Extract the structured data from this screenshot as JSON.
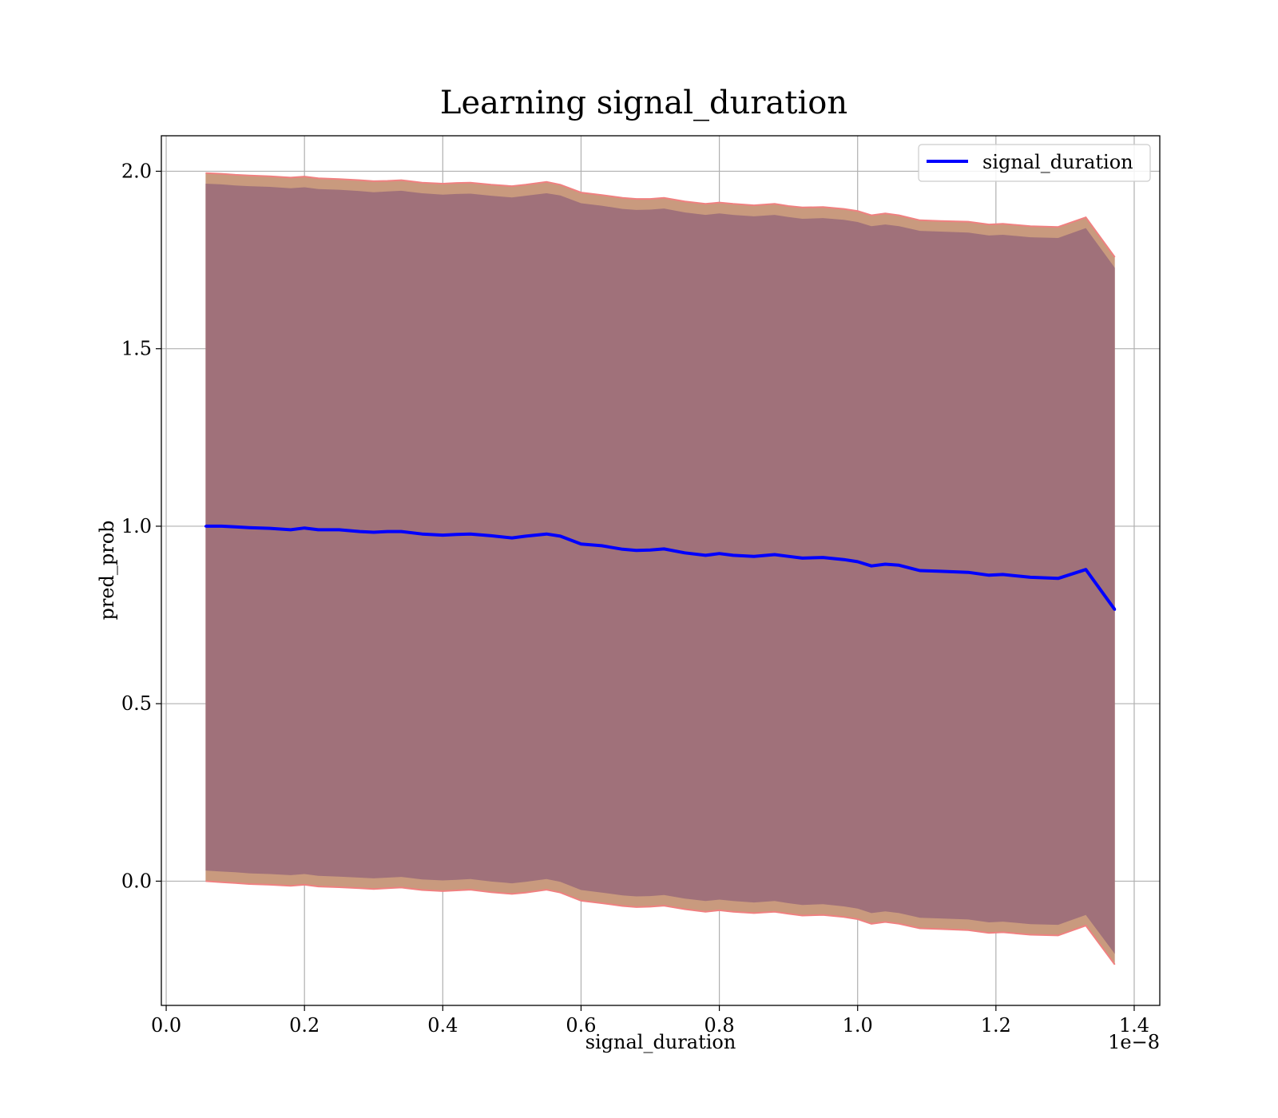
{
  "chart_data": {
    "type": "line",
    "title": "Learning signal_duration",
    "xlabel": "signal_duration",
    "ylabel": "pred_prob",
    "x_scale_label": "1e−8",
    "xlim": [
      -0.007,
      1.437
    ],
    "ylim": [
      -0.35,
      2.1
    ],
    "xticks": [
      0.0,
      0.2,
      0.4,
      0.6,
      0.8,
      1.0,
      1.2,
      1.4
    ],
    "xtick_labels": [
      "0.0",
      "0.2",
      "0.4",
      "0.6",
      "0.8",
      "1.0",
      "1.2",
      "1.4"
    ],
    "yticks": [
      0.0,
      0.5,
      1.0,
      1.5,
      2.0
    ],
    "ytick_labels": [
      "0.0",
      "0.5",
      "1.0",
      "1.5",
      "2.0"
    ],
    "grid": true,
    "legend_position": "top-right",
    "colors": {
      "line": "#0000ff",
      "band_inner": "#a0717a",
      "band_outer": "#c99a7e",
      "band_edge": "#f08080",
      "grid": "#b0b0b0"
    },
    "series": [
      {
        "name": "signal_duration",
        "x": [
          0.057,
          0.08,
          0.1,
          0.12,
          0.15,
          0.18,
          0.2,
          0.22,
          0.25,
          0.28,
          0.3,
          0.32,
          0.34,
          0.37,
          0.4,
          0.42,
          0.44,
          0.47,
          0.5,
          0.52,
          0.55,
          0.57,
          0.6,
          0.63,
          0.66,
          0.68,
          0.7,
          0.72,
          0.75,
          0.78,
          0.8,
          0.82,
          0.85,
          0.88,
          0.9,
          0.92,
          0.95,
          0.98,
          1.0,
          1.02,
          1.04,
          1.06,
          1.09,
          1.12,
          1.16,
          1.19,
          1.21,
          1.25,
          1.29,
          1.33,
          1.372
        ],
        "y": [
          1.0,
          1.0,
          0.998,
          0.996,
          0.994,
          0.99,
          0.995,
          0.99,
          0.99,
          0.985,
          0.983,
          0.985,
          0.985,
          0.978,
          0.975,
          0.977,
          0.978,
          0.973,
          0.967,
          0.972,
          0.978,
          0.972,
          0.95,
          0.945,
          0.935,
          0.932,
          0.933,
          0.936,
          0.925,
          0.918,
          0.923,
          0.918,
          0.915,
          0.92,
          0.915,
          0.91,
          0.912,
          0.906,
          0.9,
          0.888,
          0.893,
          0.89,
          0.875,
          0.873,
          0.87,
          0.862,
          0.864,
          0.856,
          0.853,
          0.878,
          0.765
        ],
        "outer_upper": [
          1.995,
          1.993,
          1.99,
          1.988,
          1.986,
          1.982,
          1.985,
          1.98,
          1.978,
          1.975,
          1.972,
          1.973,
          1.975,
          1.968,
          1.965,
          1.967,
          1.968,
          1.962,
          1.958,
          1.962,
          1.97,
          1.962,
          1.94,
          1.933,
          1.925,
          1.922,
          1.922,
          1.925,
          1.915,
          1.908,
          1.912,
          1.908,
          1.904,
          1.908,
          1.902,
          1.898,
          1.899,
          1.894,
          1.888,
          1.876,
          1.881,
          1.876,
          1.862,
          1.86,
          1.858,
          1.85,
          1.852,
          1.845,
          1.843,
          1.87,
          1.758
        ],
        "inner_upper": [
          1.965,
          1.963,
          1.96,
          1.958,
          1.956,
          1.952,
          1.955,
          1.95,
          1.948,
          1.944,
          1.941,
          1.943,
          1.945,
          1.938,
          1.934,
          1.936,
          1.937,
          1.931,
          1.926,
          1.931,
          1.938,
          1.932,
          1.91,
          1.903,
          1.894,
          1.891,
          1.892,
          1.895,
          1.884,
          1.877,
          1.881,
          1.877,
          1.873,
          1.877,
          1.871,
          1.866,
          1.868,
          1.863,
          1.857,
          1.845,
          1.85,
          1.845,
          1.832,
          1.83,
          1.827,
          1.819,
          1.821,
          1.814,
          1.812,
          1.84,
          1.728
        ],
        "inner_lower": [
          0.03,
          0.027,
          0.025,
          0.022,
          0.02,
          0.017,
          0.02,
          0.015,
          0.013,
          0.01,
          0.008,
          0.01,
          0.012,
          0.005,
          0.002,
          0.004,
          0.006,
          -0.001,
          -0.006,
          -0.002,
          0.006,
          -0.002,
          -0.025,
          -0.032,
          -0.04,
          -0.043,
          -0.042,
          -0.039,
          -0.049,
          -0.056,
          -0.052,
          -0.056,
          -0.06,
          -0.056,
          -0.062,
          -0.067,
          -0.065,
          -0.071,
          -0.077,
          -0.09,
          -0.085,
          -0.09,
          -0.103,
          -0.105,
          -0.108,
          -0.116,
          -0.114,
          -0.121,
          -0.123,
          -0.095,
          -0.205
        ],
        "outer_lower": [
          0.0,
          -0.003,
          -0.005,
          -0.008,
          -0.01,
          -0.013,
          -0.01,
          -0.015,
          -0.017,
          -0.02,
          -0.022,
          -0.02,
          -0.018,
          -0.025,
          -0.028,
          -0.026,
          -0.024,
          -0.031,
          -0.036,
          -0.032,
          -0.024,
          -0.032,
          -0.055,
          -0.062,
          -0.07,
          -0.073,
          -0.072,
          -0.069,
          -0.079,
          -0.086,
          -0.082,
          -0.086,
          -0.09,
          -0.086,
          -0.092,
          -0.097,
          -0.095,
          -0.101,
          -0.107,
          -0.12,
          -0.115,
          -0.12,
          -0.133,
          -0.135,
          -0.138,
          -0.146,
          -0.144,
          -0.151,
          -0.153,
          -0.125,
          -0.235
        ]
      }
    ]
  }
}
